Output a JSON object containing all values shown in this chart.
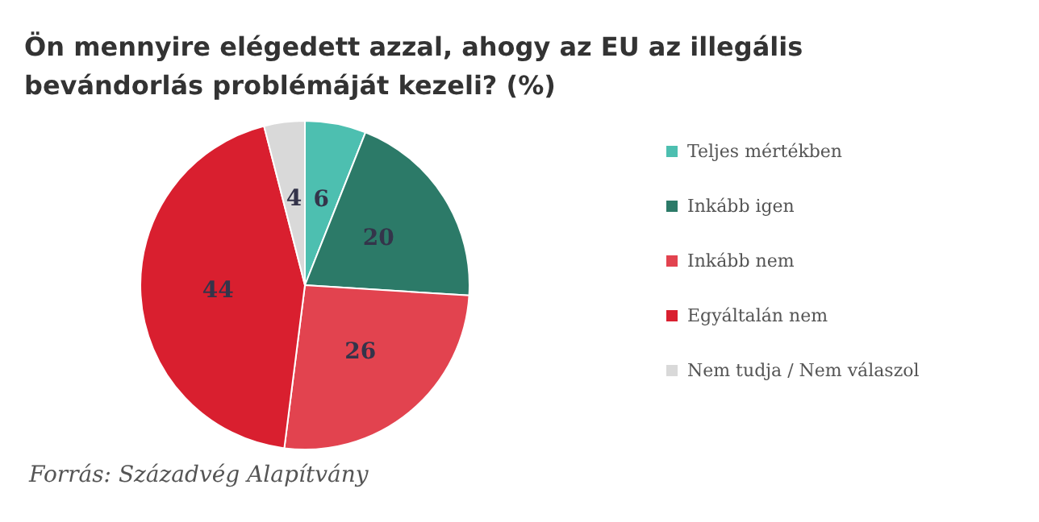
{
  "chart_data": {
    "type": "pie",
    "title": "Ön mennyire elégedett azzal, ahogy az EU az illegális\nbevándorlás problémáját kezeli? (%)",
    "categories": [
      "Teljes mértékben",
      "Inkább igen",
      "Inkább nem",
      "Egyáltalán nem",
      "Nem tudja / Nem válaszol"
    ],
    "values": [
      6,
      20,
      26,
      44,
      4
    ],
    "colors": [
      "#4dbfb0",
      "#2c7a68",
      "#e2434f",
      "#d91f2f",
      "#d9d9d9"
    ],
    "data_labels": true,
    "legend": "right",
    "annotations": [
      "Forrás: Századvég Alapítvány"
    ]
  }
}
